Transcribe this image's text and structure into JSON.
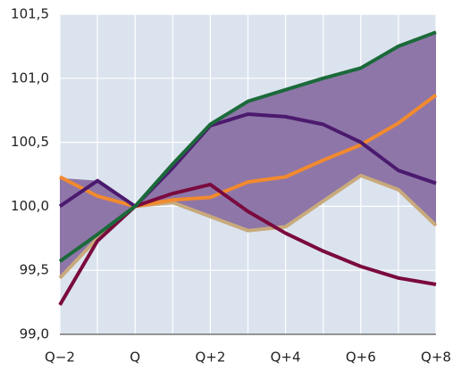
{
  "chart_data": {
    "type": "line",
    "categories": [
      "Q−2",
      null,
      "Q",
      null,
      "Q+2",
      null,
      "Q+4",
      null,
      "Q+6",
      null,
      "Q+8"
    ],
    "band": {
      "color": "#8e76a8",
      "upper": [
        100.22,
        100.2,
        100.0,
        100.33,
        100.64,
        100.82,
        100.91,
        101.0,
        101.08,
        101.25,
        101.36
      ],
      "lower": [
        99.45,
        99.75,
        100.0,
        100.03,
        99.92,
        99.81,
        99.84,
        100.04,
        100.24,
        100.13,
        99.85
      ]
    },
    "series": [
      {
        "color": "#c8aa7c",
        "values": [
          99.44,
          99.75,
          100.0,
          100.03,
          99.92,
          99.81,
          99.84,
          100.04,
          100.24,
          100.13,
          99.85
        ]
      },
      {
        "color": "#f28a2e",
        "values": [
          100.23,
          100.08,
          100.0,
          100.05,
          100.07,
          100.19,
          100.23,
          100.36,
          100.48,
          100.65,
          100.87
        ]
      },
      {
        "color": "#4b1a6e",
        "values": [
          100.0,
          100.2,
          100.0,
          100.3,
          100.63,
          100.72,
          100.7,
          100.64,
          100.5,
          100.28,
          100.18
        ]
      },
      {
        "color": "#7a0a3e",
        "values": [
          99.23,
          99.73,
          100.0,
          100.1,
          100.17,
          99.96,
          99.79,
          99.65,
          99.53,
          99.44,
          99.39
        ]
      },
      {
        "color": "#1b6a3a",
        "values": [
          99.57,
          99.78,
          100.0,
          100.33,
          100.64,
          100.82,
          100.91,
          101.0,
          101.08,
          101.25,
          101.36
        ]
      }
    ],
    "ylim": [
      99.0,
      101.5
    ],
    "yticks": [
      {
        "value": 99.0,
        "label": "99,0"
      },
      {
        "value": 99.5,
        "label": "99,5"
      },
      {
        "value": 100.0,
        "label": "100,0"
      },
      {
        "value": 100.5,
        "label": "100,5"
      },
      {
        "value": 101.0,
        "label": "101,0"
      },
      {
        "value": 101.5,
        "label": "101,5"
      }
    ],
    "grid": true,
    "background": "#dbe3ee"
  }
}
